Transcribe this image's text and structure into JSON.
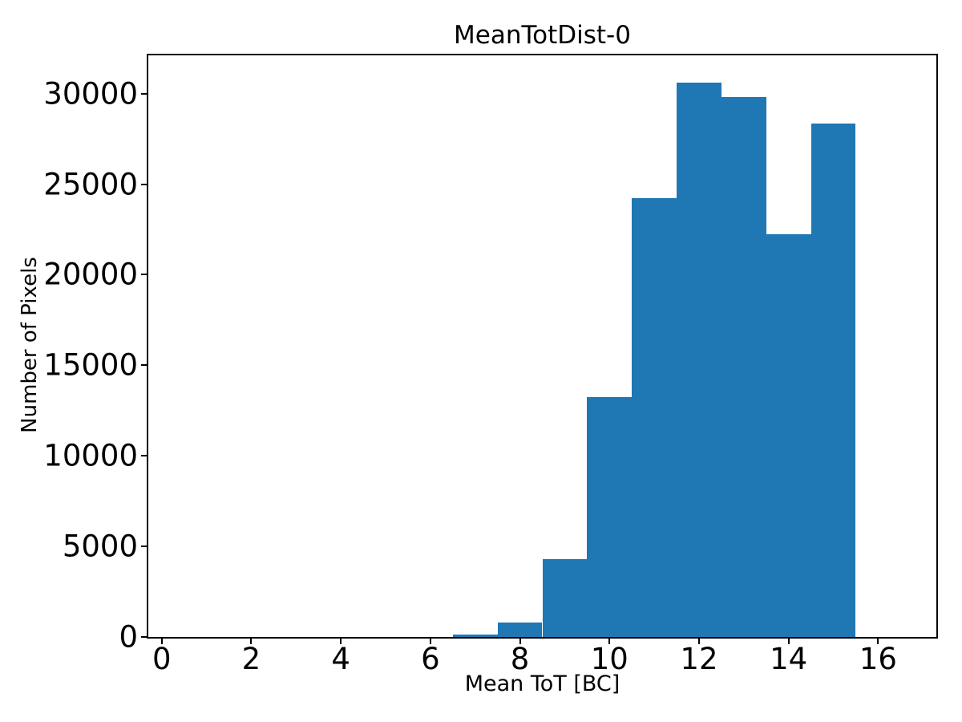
{
  "chart_data": {
    "type": "bar",
    "subtype": "histogram",
    "title": "MeanTotDist-0",
    "xlabel": "Mean ToT [BC]",
    "ylabel": "Number of Pixels",
    "bin_edges": [
      0.5,
      1.5,
      2.5,
      3.5,
      4.5,
      5.5,
      6.5,
      7.5,
      8.5,
      9.5,
      10.5,
      11.5,
      12.5,
      13.5,
      14.5,
      15.5,
      16.5
    ],
    "counts": [
      0,
      0,
      0,
      0,
      0,
      0,
      130,
      800,
      4300,
      13250,
      24250,
      30590,
      29830,
      22250,
      28370,
      0
    ],
    "x_ticks": [
      0,
      2,
      4,
      6,
      8,
      10,
      12,
      14,
      16
    ],
    "y_ticks": [
      0,
      5000,
      10000,
      15000,
      20000,
      25000,
      30000
    ],
    "xlim": [
      -0.3,
      17.3
    ],
    "ylim": [
      0,
      32115
    ],
    "bar_color": "#1f77b4",
    "axis_color": "#000000",
    "grid": false,
    "legend_position": "none"
  }
}
